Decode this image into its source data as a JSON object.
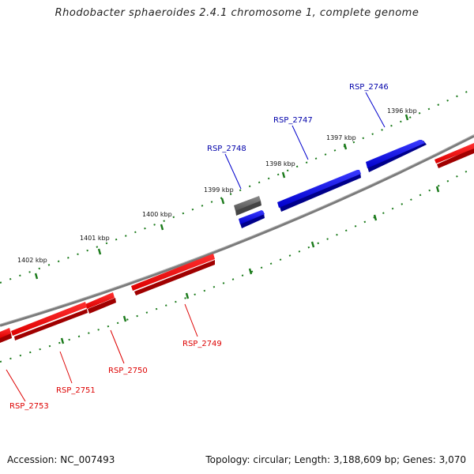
{
  "title": "Rhodobacter sphaeroides 2.4.1 chromosome 1, complete genome",
  "footer": {
    "accession": "Accession: NC_007493",
    "summary": "Topology: circular; Length: 3,188,609 bp; Genes: 3,070"
  },
  "ticks": [
    "1396 kbp",
    "1397 kbp",
    "1398 kbp",
    "1399 kbp",
    "1400 kbp",
    "1401 kbp",
    "1402 kbp"
  ],
  "genes_forward": [
    "RSP_2746",
    "RSP_2747",
    "RSP_2748"
  ],
  "genes_reverse": [
    "RSP_2749",
    "RSP_2750",
    "RSP_2751",
    "RSP_2753"
  ],
  "colors": {
    "forward": "#0000dd",
    "reverse": "#ee0000",
    "rna": "#666666",
    "backbone": "#808080",
    "ticks": "#1a7a1a"
  }
}
